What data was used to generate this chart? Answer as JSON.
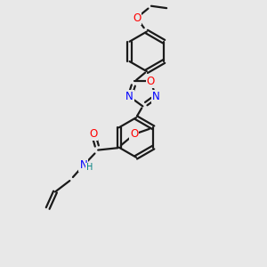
{
  "bg_color": "#e8e8e8",
  "bond_color": "#1a1a1a",
  "bond_width": 1.6,
  "atom_colors": {
    "N": "#0000ff",
    "O": "#ff0000",
    "C": "#1a1a1a",
    "H": "#1a1a1a"
  },
  "font_size_atom": 8.5,
  "font_size_h": 7.0
}
